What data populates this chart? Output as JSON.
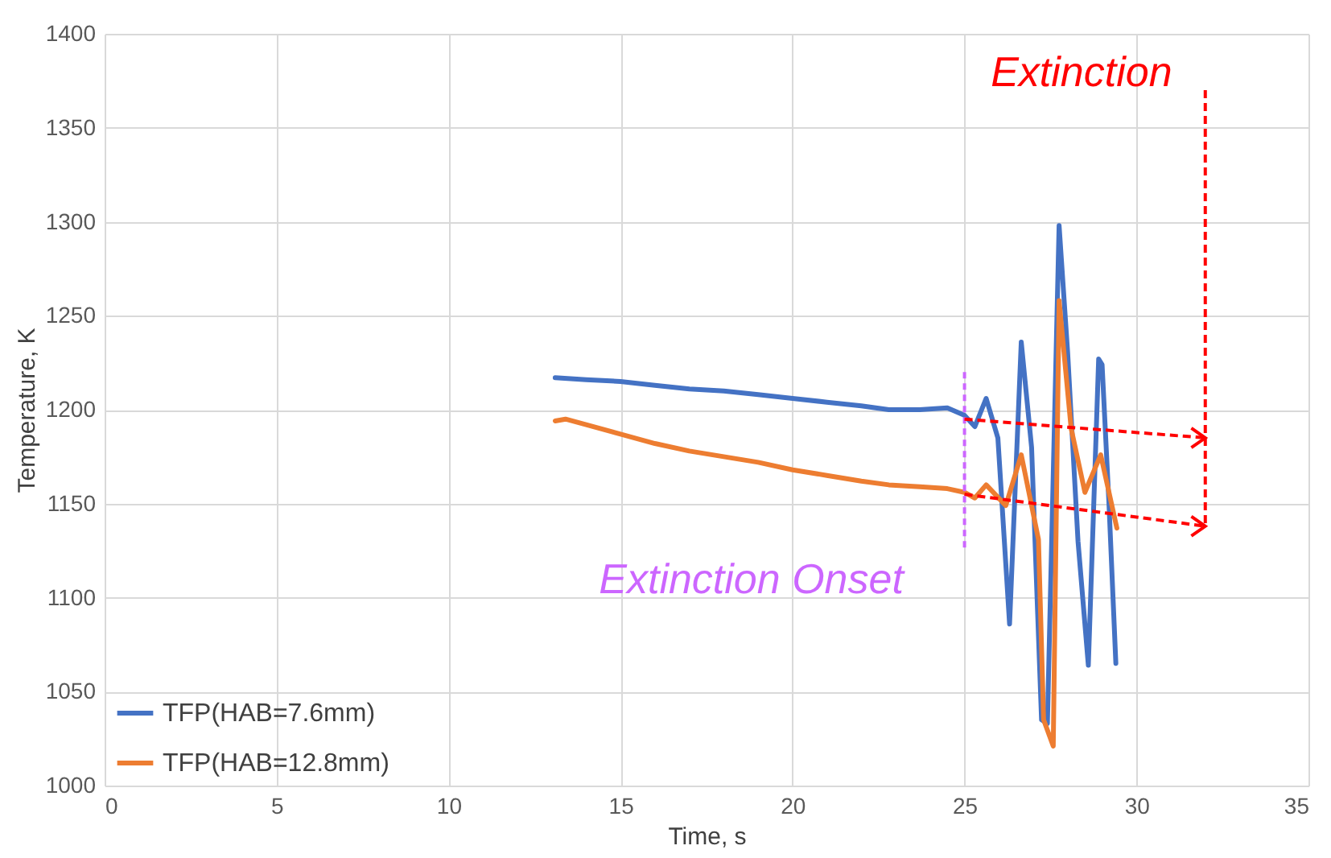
{
  "chart_data": {
    "type": "line",
    "xlabel": "Time, s",
    "ylabel": "Temperature, K",
    "xlim": [
      0,
      35
    ],
    "xticks": [
      0,
      5,
      10,
      15,
      20,
      25,
      30,
      35
    ],
    "ylim": [
      1000,
      1400
    ],
    "yticks": [
      1000,
      1050,
      1100,
      1150,
      1200,
      1250,
      1300,
      1350,
      1400
    ],
    "grid": true,
    "legend": "bottom left",
    "line_style": "solid",
    "marker": "none",
    "annotations": [
      "Extinction",
      "Extinction Onset"
    ],
    "series": [
      {
        "name": "TFP(HAB=7.6mm)",
        "color": "#4472c4",
        "x": [
          13.1,
          14,
          15,
          16,
          17,
          18,
          19,
          20,
          21,
          22,
          22.8,
          23.7,
          24.5,
          25.0,
          25.3,
          25.63,
          25.97,
          26.31,
          26.65,
          26.95,
          27.24,
          27.41,
          27.75,
          28.0,
          28.3,
          28.6,
          28.9,
          29.0,
          29.2,
          29.4
        ],
        "values": [
          1217,
          1216,
          1215,
          1213,
          1211,
          1210,
          1208,
          1206,
          1204,
          1202,
          1200,
          1200,
          1201,
          1197,
          1191,
          1206,
          1185,
          1086,
          1236,
          1180,
          1035,
          1033,
          1298,
          1230,
          1130,
          1064,
          1227,
          1224,
          1150,
          1065
        ]
      },
      {
        "name": "TFP(HAB=12.8mm)",
        "color": "#ed7d31",
        "x": [
          13.1,
          13.4,
          14,
          15,
          16,
          17,
          18,
          19,
          20,
          21,
          22,
          22.8,
          23.7,
          24.5,
          25.0,
          25.3,
          25.63,
          26.2,
          26.65,
          27.15,
          27.3,
          27.58,
          27.75,
          28.1,
          28.5,
          28.96,
          29.43
        ],
        "values": [
          1194,
          1195,
          1192,
          1187,
          1182,
          1178,
          1175,
          1172,
          1168,
          1165,
          1162,
          1160,
          1159,
          1158,
          1156,
          1153,
          1160,
          1149,
          1176,
          1131,
          1035,
          1021,
          1258,
          1190,
          1156,
          1176,
          1137
        ]
      }
    ]
  }
}
